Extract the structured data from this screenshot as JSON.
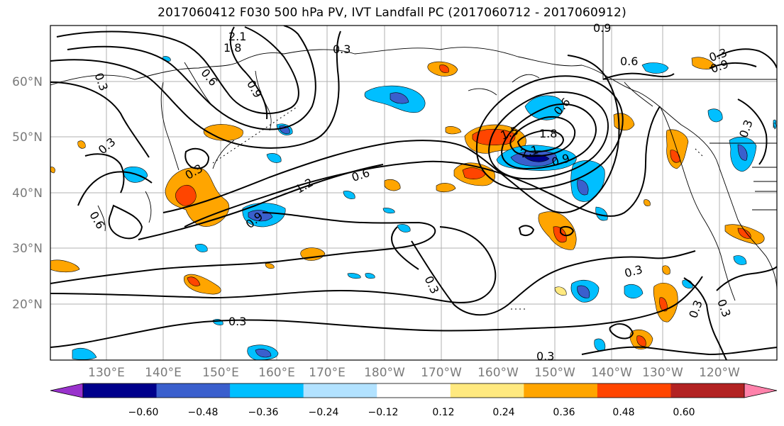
{
  "title": "2017060412 F030 500 hPa PV, IVT Landfall PC (2017060712 - 2017060912)",
  "latitude_labels": [
    "60°N",
    "50°N",
    "40°N",
    "30°N",
    "20°N"
  ],
  "longitude_labels": [
    "130°E",
    "140°E",
    "150°E",
    "160°E",
    "170°E",
    "180°W",
    "170°W",
    "160°W",
    "150°W",
    "140°W",
    "130°W",
    "120°W"
  ],
  "contour_labels": [
    "2.1",
    "1.8",
    "0.3",
    "0.6",
    "0.9",
    "0.3",
    "0.6",
    "0.9",
    "0.6",
    "1.8",
    "1.5",
    "2.1",
    "0.9",
    "1.2",
    "0.6",
    "0.3",
    "0.3",
    "0.9",
    "0.3",
    "0.3",
    "0.3",
    "0.3",
    "0.3",
    "0.6",
    "0.3",
    "0.9",
    "0.3",
    "0.3"
  ],
  "colorbar": {
    "tick_labels": [
      "−0.60",
      "−0.48",
      "−0.36",
      "−0.24",
      "−0.12",
      "0.12",
      "0.24",
      "0.36",
      "0.48",
      "0.60"
    ],
    "colors": [
      "#9932cc",
      "#00008b",
      "#3a5fcd",
      "#00bfff",
      "#b2e2ff",
      "#ffffff",
      "#ffe97f",
      "#ffa500",
      "#ff4500",
      "#b22222",
      "#ff82ab"
    ]
  }
}
